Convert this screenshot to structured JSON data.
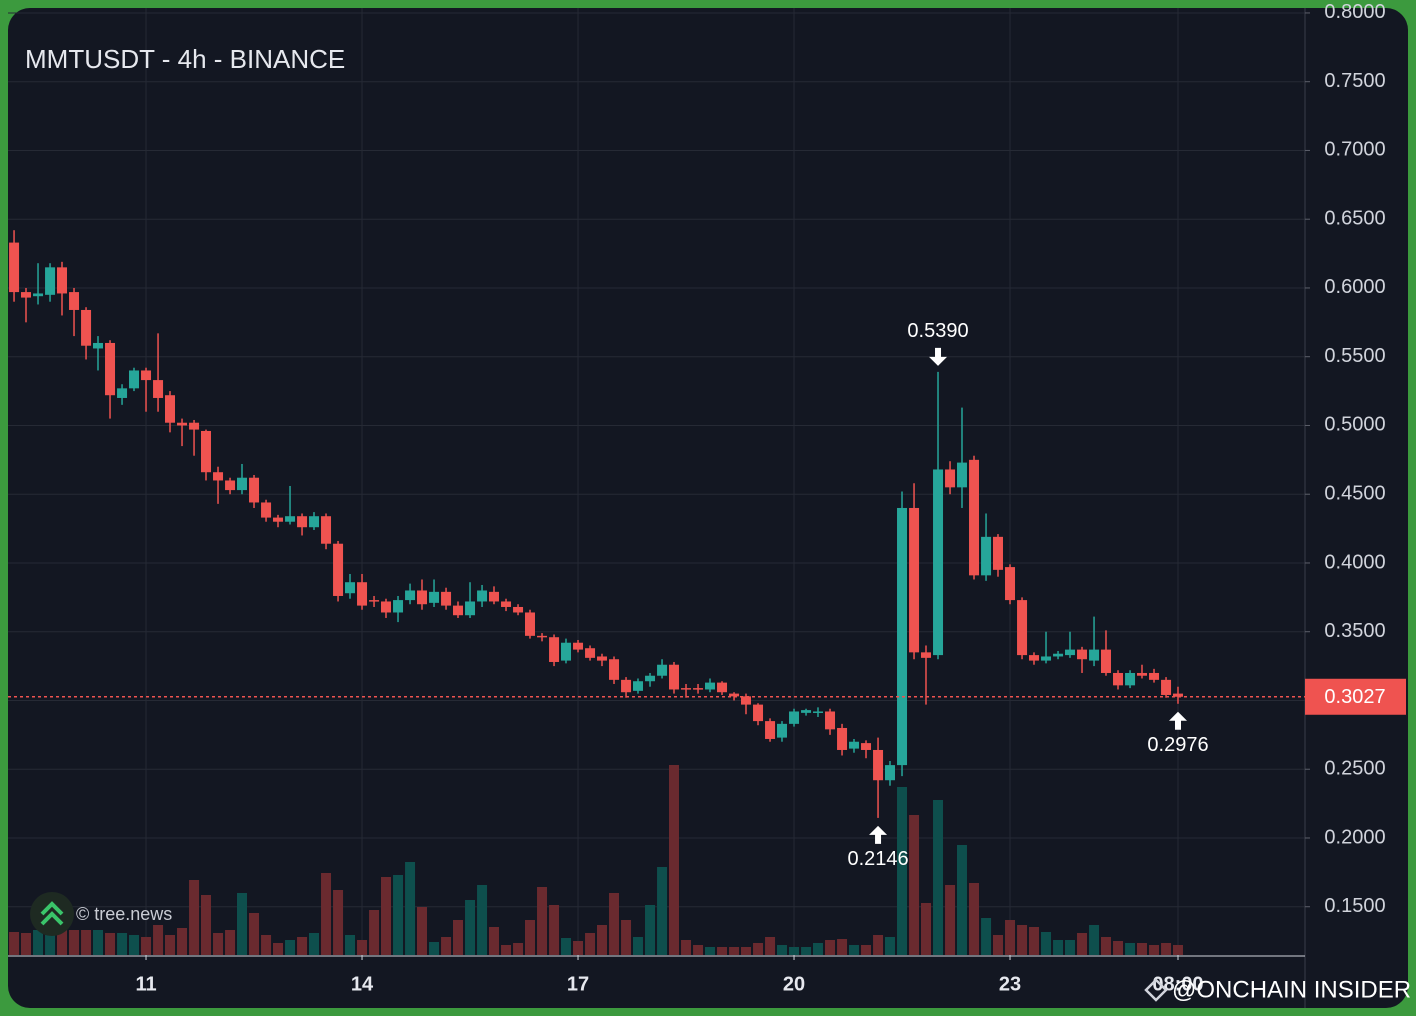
{
  "chart_data": {
    "type": "candlestick",
    "title": "MMTUSDT - 4h - BINANCE",
    "x": [
      9.167,
      9.333,
      9.5,
      9.667,
      9.833,
      10,
      10.167,
      10.333,
      10.5,
      10.667,
      10.833,
      11,
      11.167,
      11.333,
      11.5,
      11.667,
      11.833,
      12,
      12.167,
      12.333,
      12.5,
      12.667,
      12.833,
      13,
      13.167,
      13.333,
      13.5,
      13.667,
      13.833,
      14,
      14.167,
      14.333,
      14.5,
      14.667,
      14.833,
      15,
      15.167,
      15.333,
      15.5,
      15.667,
      15.833,
      16,
      16.167,
      16.333,
      16.5,
      16.667,
      16.833,
      17,
      17.167,
      17.333,
      17.5,
      17.667,
      17.833,
      18,
      18.167,
      18.333,
      18.5,
      18.667,
      18.833,
      19,
      19.167,
      19.333,
      19.5,
      19.667,
      19.833,
      20,
      20.167,
      20.333,
      20.5,
      20.667,
      20.833,
      21,
      21.167,
      21.333,
      21.5,
      21.667,
      21.833,
      22,
      22.167,
      22.333,
      22.5,
      22.667,
      22.833,
      23,
      23.167,
      23.333,
      23.5,
      23.667,
      23.833,
      24,
      24.167,
      24.333,
      24.5,
      24.667,
      24.833,
      25,
      25.167,
      25.333
    ],
    "open": [
      0.633,
      0.597,
      0.594,
      0.595,
      0.615,
      0.597,
      0.584,
      0.556,
      0.56,
      0.52,
      0.527,
      0.54,
      0.533,
      0.522,
      0.502,
      0.502,
      0.496,
      0.466,
      0.46,
      0.453,
      0.462,
      0.444,
      0.433,
      0.43,
      0.434,
      0.426,
      0.434,
      0.414,
      0.378,
      0.386,
      0.373,
      0.372,
      0.364,
      0.373,
      0.38,
      0.371,
      0.379,
      0.369,
      0.362,
      0.372,
      0.379,
      0.372,
      0.368,
      0.364,
      0.347,
      0.346,
      0.329,
      0.342,
      0.338,
      0.332,
      0.33,
      0.315,
      0.307,
      0.314,
      0.318,
      0.326,
      0.309,
      0.309,
      0.308,
      0.313,
      0.305,
      0.303,
      0.297,
      0.285,
      0.273,
      0.283,
      0.291,
      0.291,
      0.292,
      0.28,
      0.265,
      0.269,
      0.264,
      0.242,
      0.253,
      0.44,
      0.335,
      0.333,
      0.468,
      0.455,
      0.475,
      0.391,
      0.419,
      0.397,
      0.373,
      0.333,
      0.329,
      0.332,
      0.333,
      0.337,
      0.329,
      0.337,
      0.32,
      0.311,
      0.32,
      0.32,
      0.315,
      0.305
    ],
    "high": [
      0.642,
      0.6,
      0.618,
      0.618,
      0.619,
      0.6,
      0.586,
      0.565,
      0.562,
      0.53,
      0.542,
      0.542,
      0.567,
      0.525,
      0.505,
      0.504,
      0.497,
      0.47,
      0.462,
      0.472,
      0.464,
      0.446,
      0.435,
      0.456,
      0.436,
      0.437,
      0.436,
      0.416,
      0.392,
      0.392,
      0.376,
      0.374,
      0.376,
      0.385,
      0.388,
      0.388,
      0.382,
      0.372,
      0.386,
      0.384,
      0.383,
      0.374,
      0.37,
      0.366,
      0.349,
      0.348,
      0.345,
      0.344,
      0.34,
      0.334,
      0.332,
      0.317,
      0.316,
      0.32,
      0.33,
      0.328,
      0.312,
      0.312,
      0.316,
      0.314,
      0.306,
      0.305,
      0.298,
      0.287,
      0.285,
      0.294,
      0.294,
      0.295,
      0.294,
      0.283,
      0.272,
      0.271,
      0.273,
      0.256,
      0.452,
      0.458,
      0.34,
      0.539,
      0.474,
      0.513,
      0.478,
      0.436,
      0.421,
      0.399,
      0.375,
      0.335,
      0.35,
      0.336,
      0.35,
      0.339,
      0.361,
      0.351,
      0.322,
      0.322,
      0.326,
      0.323,
      0.317,
      0.31
    ],
    "low": [
      0.59,
      0.575,
      0.588,
      0.59,
      0.58,
      0.565,
      0.548,
      0.54,
      0.505,
      0.515,
      0.525,
      0.51,
      0.51,
      0.495,
      0.485,
      0.478,
      0.46,
      0.443,
      0.45,
      0.45,
      0.44,
      0.43,
      0.426,
      0.428,
      0.42,
      0.424,
      0.41,
      0.372,
      0.374,
      0.366,
      0.368,
      0.36,
      0.357,
      0.37,
      0.366,
      0.368,
      0.366,
      0.36,
      0.36,
      0.368,
      0.37,
      0.365,
      0.362,
      0.345,
      0.343,
      0.325,
      0.327,
      0.335,
      0.329,
      0.325,
      0.312,
      0.302,
      0.305,
      0.31,
      0.316,
      0.305,
      0.302,
      0.305,
      0.306,
      0.304,
      0.3,
      0.29,
      0.282,
      0.27,
      0.27,
      0.281,
      0.289,
      0.288,
      0.275,
      0.26,
      0.262,
      0.258,
      0.2146,
      0.238,
      0.245,
      0.33,
      0.297,
      0.33,
      0.45,
      0.44,
      0.388,
      0.387,
      0.39,
      0.37,
      0.33,
      0.326,
      0.327,
      0.33,
      0.331,
      0.32,
      0.325,
      0.318,
      0.308,
      0.309,
      0.316,
      0.313,
      0.302,
      0.2976
    ],
    "close": [
      0.597,
      0.593,
      0.596,
      0.615,
      0.596,
      0.584,
      0.558,
      0.56,
      0.522,
      0.527,
      0.54,
      0.533,
      0.52,
      0.502,
      0.5,
      0.497,
      0.466,
      0.46,
      0.453,
      0.462,
      0.444,
      0.433,
      0.43,
      0.434,
      0.426,
      0.434,
      0.414,
      0.376,
      0.386,
      0.369,
      0.372,
      0.364,
      0.373,
      0.38,
      0.37,
      0.379,
      0.369,
      0.362,
      0.372,
      0.38,
      0.372,
      0.368,
      0.364,
      0.347,
      0.346,
      0.328,
      0.342,
      0.337,
      0.331,
      0.329,
      0.315,
      0.306,
      0.314,
      0.318,
      0.326,
      0.308,
      0.308,
      0.308,
      0.313,
      0.306,
      0.303,
      0.297,
      0.285,
      0.272,
      0.283,
      0.292,
      0.293,
      0.292,
      0.279,
      0.264,
      0.27,
      0.264,
      0.242,
      0.253,
      0.44,
      0.335,
      0.331,
      0.468,
      0.455,
      0.473,
      0.391,
      0.419,
      0.395,
      0.373,
      0.333,
      0.329,
      0.332,
      0.334,
      0.337,
      0.33,
      0.337,
      0.32,
      0.311,
      0.32,
      0.318,
      0.315,
      0.304,
      0.3027
    ],
    "volume": [
      23,
      22,
      25,
      20,
      25,
      25,
      25,
      25,
      22,
      22,
      20,
      18,
      30,
      20,
      27,
      75,
      60,
      22,
      25,
      62,
      42,
      20,
      12,
      15,
      18,
      22,
      82,
      65,
      20,
      15,
      45,
      78,
      80,
      93,
      48,
      13,
      18,
      35,
      55,
      70,
      28,
      10,
      12,
      35,
      68,
      50,
      17,
      14,
      22,
      30,
      62,
      35,
      18,
      50,
      88,
      190,
      15,
      10,
      8,
      8,
      8,
      8,
      12,
      18,
      10,
      8,
      8,
      12,
      15,
      16,
      10,
      10,
      20,
      18,
      168,
      140,
      52,
      155,
      70,
      110,
      72,
      37,
      20,
      35,
      30,
      28,
      23,
      15,
      15,
      22,
      30,
      18,
      14,
      12,
      12,
      10,
      12,
      10
    ],
    "up_color": "#26a69a",
    "down_color": "#ef5350",
    "up_volume_color": "#0e4f4d",
    "down_volume_color": "#6a2a2f",
    "ylim": [
      0.1149,
      0.8036
    ],
    "yticks": [
      {
        "value": 0.15,
        "label": "0.1500"
      },
      {
        "value": 0.2,
        "label": "0.2000"
      },
      {
        "value": 0.25,
        "label": "0.2500"
      },
      {
        "value": 0.3,
        "label": "0.3000"
      },
      {
        "value": 0.35,
        "label": "0.3500"
      },
      {
        "value": 0.4,
        "label": "0.4000"
      },
      {
        "value": 0.45,
        "label": "0.4500"
      },
      {
        "value": 0.5,
        "label": "0.5000"
      },
      {
        "value": 0.55,
        "label": "0.5500"
      },
      {
        "value": 0.6,
        "label": "0.6000"
      },
      {
        "value": 0.65,
        "label": "0.6500"
      },
      {
        "value": 0.7,
        "label": "0.7000"
      },
      {
        "value": 0.75,
        "label": "0.7500"
      },
      {
        "value": 0.8,
        "label": "0.8000"
      }
    ],
    "xlim": [
      9.083,
      27.097
    ],
    "xticks": [
      11,
      14,
      17,
      20,
      23,
      {
        "value": 25.333,
        "label": "08:00"
      }
    ],
    "grid": true,
    "last_price": {
      "value": 0.3027,
      "label": "0.3027"
    },
    "annotations": [
      {
        "value": 0.539,
        "label": "0.5390",
        "x": 22,
        "kind": "high"
      },
      {
        "value": 0.2146,
        "label": "0.2146",
        "x": 21.167,
        "kind": "low"
      },
      {
        "value": 0.2976,
        "label": "0.2976",
        "x": 25.333,
        "kind": "low"
      }
    ]
  },
  "watermarks": [
    "© tree.news",
    "@ONCHAIN INSIDER"
  ]
}
